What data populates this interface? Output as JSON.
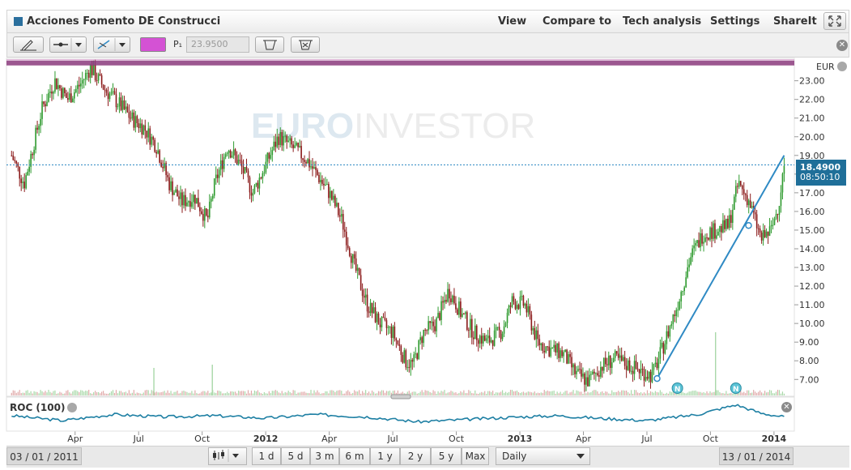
{
  "header": {
    "title": "Acciones Fomento DE Construcci",
    "menu": [
      "View",
      "Compare to",
      "Tech analysis",
      "Settings",
      "ShareIt"
    ]
  },
  "toolbar": {
    "price_label": "P₁",
    "price_value": "23.9500",
    "line_color": "#d452d4"
  },
  "chart": {
    "currency": "EUR",
    "watermark_a": "EURO",
    "watermark_b": "INVESTOR",
    "last_price": "18.4900",
    "last_time": "08:50:10"
  },
  "indicator": {
    "label": "ROC (100)"
  },
  "footer": {
    "start_date": "03 / 01 / 2011",
    "end_date": "13 / 01 / 2014",
    "ranges": [
      "1 d",
      "5 d",
      "3 m",
      "6 m",
      "1 y",
      "2 y",
      "5 y",
      "Max"
    ],
    "interval": "Daily"
  },
  "colors": {
    "up": "#2e9a2e",
    "down": "#8b1a1a",
    "trendline": "#2f8ac4",
    "roc": "#1d7fa3",
    "accent": "#1f6f99"
  },
  "chart_data": {
    "type": "candlestick",
    "currency": "EUR",
    "y_ticks": [
      "7.00",
      "8.00",
      "9.00",
      "10.00",
      "11.00",
      "12.00",
      "13.00",
      "14.00",
      "15.00",
      "16.00",
      "17.00",
      "18.00",
      "19.00",
      "20.00",
      "21.00",
      "22.00",
      "23.00"
    ],
    "ylim": [
      6.1,
      24.2
    ],
    "x_labels": [
      "Apr",
      "Jul",
      "Oct",
      "2012",
      "Apr",
      "Jul",
      "Oct",
      "2013",
      "Apr",
      "Jul",
      "Oct",
      "2014"
    ],
    "x_bold": [
      "2012",
      "2013",
      "2014"
    ],
    "resistance_line": 23.95,
    "last_price": 18.49,
    "trendline": [
      [
        2013.54,
        7.05
      ],
      [
        2014.04,
        19.0
      ]
    ],
    "price_path": [
      [
        2011.0,
        19.0
      ],
      [
        2011.05,
        17.5
      ],
      [
        2011.12,
        21.5
      ],
      [
        2011.17,
        23.0
      ],
      [
        2011.22,
        22.0
      ],
      [
        2011.27,
        22.8
      ],
      [
        2011.31,
        23.7
      ],
      [
        2011.37,
        22.5
      ],
      [
        2011.42,
        21.8
      ],
      [
        2011.47,
        21.0
      ],
      [
        2011.52,
        20.5
      ],
      [
        2011.57,
        19.5
      ],
      [
        2011.62,
        17.5
      ],
      [
        2011.67,
        16.5
      ],
      [
        2011.72,
        16.8
      ],
      [
        2011.77,
        15.5
      ],
      [
        2011.8,
        17.5
      ],
      [
        2011.85,
        19.5
      ],
      [
        2011.9,
        18.5
      ],
      [
        2011.95,
        17.0
      ],
      [
        2012.0,
        18.5
      ],
      [
        2012.05,
        20.0
      ],
      [
        2012.1,
        19.5
      ],
      [
        2012.16,
        18.8
      ],
      [
        2012.2,
        18.0
      ],
      [
        2012.25,
        17.0
      ],
      [
        2012.3,
        15.5
      ],
      [
        2012.35,
        13.0
      ],
      [
        2012.4,
        11.0
      ],
      [
        2012.45,
        10.0
      ],
      [
        2012.5,
        9.5
      ],
      [
        2012.55,
        8.0
      ],
      [
        2012.58,
        7.8
      ],
      [
        2012.62,
        9.5
      ],
      [
        2012.67,
        10.0
      ],
      [
        2012.72,
        11.8
      ],
      [
        2012.77,
        10.5
      ],
      [
        2012.82,
        9.5
      ],
      [
        2012.87,
        9.0
      ],
      [
        2012.93,
        9.6
      ],
      [
        2012.97,
        11.2
      ],
      [
        2013.02,
        11.0
      ],
      [
        2013.07,
        9.0
      ],
      [
        2013.12,
        8.6
      ],
      [
        2013.17,
        8.4
      ],
      [
        2013.22,
        7.3
      ],
      [
        2013.27,
        6.9
      ],
      [
        2013.32,
        7.7
      ],
      [
        2013.37,
        8.1
      ],
      [
        2013.42,
        7.8
      ],
      [
        2013.47,
        7.5
      ],
      [
        2013.52,
        7.2
      ],
      [
        2013.56,
        8.6
      ],
      [
        2013.62,
        11.0
      ],
      [
        2013.67,
        13.5
      ],
      [
        2013.72,
        14.8
      ],
      [
        2013.77,
        15.0
      ],
      [
        2013.82,
        15.2
      ],
      [
        2013.86,
        17.5
      ],
      [
        2013.9,
        16.6
      ],
      [
        2013.95,
        14.5
      ],
      [
        2013.99,
        15.0
      ],
      [
        2014.02,
        16.5
      ],
      [
        2014.04,
        18.5
      ]
    ],
    "volume_spikes": [
      "2011.56",
      "2011.79",
      "2013.77"
    ],
    "events": [
      {
        "x": 2013.62,
        "label": "N"
      },
      {
        "x": 2013.85,
        "label": "N"
      }
    ],
    "indicator": {
      "name": "ROC (100)",
      "path": [
        [
          2011.0,
          0.5
        ],
        [
          2011.2,
          0.3
        ],
        [
          2011.4,
          0.55
        ],
        [
          2011.6,
          0.45
        ],
        [
          2011.8,
          0.5
        ],
        [
          2012.0,
          0.4
        ],
        [
          2012.2,
          0.55
        ],
        [
          2012.4,
          0.45
        ],
        [
          2012.6,
          0.25
        ],
        [
          2012.8,
          0.35
        ],
        [
          2013.0,
          0.45
        ],
        [
          2013.15,
          0.5
        ],
        [
          2013.3,
          0.4
        ],
        [
          2013.5,
          0.3
        ],
        [
          2013.7,
          0.55
        ],
        [
          2013.85,
          0.95
        ],
        [
          2013.95,
          0.6
        ],
        [
          2014.04,
          0.45
        ]
      ]
    }
  }
}
